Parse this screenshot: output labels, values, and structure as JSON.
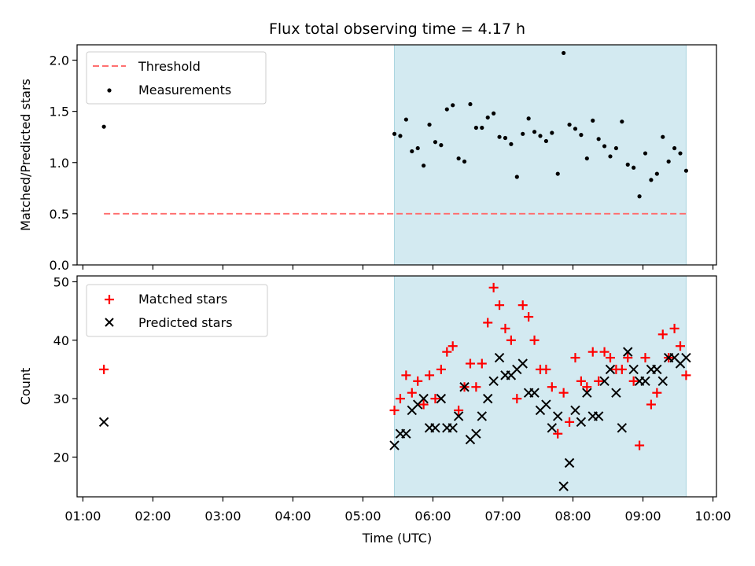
{
  "chart_data": {
    "title": "Flux total observing time = 4.17 h",
    "xlabel": "Time (UTC)",
    "x_type": "time",
    "xlim": [
      "00:55",
      "10:03"
    ],
    "x_ticks": [
      "01:00",
      "02:00",
      "03:00",
      "04:00",
      "05:00",
      "06:00",
      "07:00",
      "08:00",
      "09:00",
      "10:00"
    ],
    "shaded_region": {
      "x": [
        "05:27",
        "09:37"
      ],
      "color": "#d3eaf1"
    },
    "panels": [
      {
        "type": "scatter",
        "ylabel": "Matched/Predicted stars",
        "ylim": [
          0.0,
          2.15
        ],
        "y_ticks": [
          "0.0",
          "0.5",
          "1.0",
          "1.5",
          "2.0"
        ],
        "legend": "top-left",
        "series": [
          {
            "name": "Threshold",
            "kind": "dashed-line",
            "color": "#ff7070",
            "points": [
              [
                "01:18",
                0.5
              ],
              [
                "09:37",
                0.5
              ]
            ]
          },
          {
            "name": "Measurements",
            "kind": "dot",
            "color": "#000000",
            "points": [
              [
                "01:18",
                1.35
              ],
              [
                "05:27",
                1.28
              ],
              [
                "05:32",
                1.26
              ],
              [
                "05:37",
                1.42
              ],
              [
                "05:42",
                1.11
              ],
              [
                "05:47",
                1.14
              ],
              [
                "05:52",
                0.97
              ],
              [
                "05:57",
                1.37
              ],
              [
                "06:02",
                1.2
              ],
              [
                "06:07",
                1.17
              ],
              [
                "06:12",
                1.52
              ],
              [
                "06:17",
                1.56
              ],
              [
                "06:22",
                1.04
              ],
              [
                "06:27",
                1.01
              ],
              [
                "06:32",
                1.57
              ],
              [
                "06:37",
                1.34
              ],
              [
                "06:42",
                1.34
              ],
              [
                "06:47",
                1.44
              ],
              [
                "06:52",
                1.48
              ],
              [
                "06:57",
                1.25
              ],
              [
                "07:02",
                1.24
              ],
              [
                "07:07",
                1.18
              ],
              [
                "07:12",
                0.86
              ],
              [
                "07:17",
                1.28
              ],
              [
                "07:22",
                1.43
              ],
              [
                "07:27",
                1.3
              ],
              [
                "07:32",
                1.26
              ],
              [
                "07:37",
                1.21
              ],
              [
                "07:42",
                1.29
              ],
              [
                "07:47",
                0.89
              ],
              [
                "07:52",
                2.07
              ],
              [
                "07:57",
                1.37
              ],
              [
                "08:02",
                1.33
              ],
              [
                "08:07",
                1.27
              ],
              [
                "08:12",
                1.04
              ],
              [
                "08:17",
                1.41
              ],
              [
                "08:22",
                1.23
              ],
              [
                "08:27",
                1.16
              ],
              [
                "08:32",
                1.06
              ],
              [
                "08:37",
                1.14
              ],
              [
                "08:42",
                1.4
              ],
              [
                "08:47",
                0.98
              ],
              [
                "08:52",
                0.95
              ],
              [
                "08:57",
                0.67
              ],
              [
                "09:02",
                1.09
              ],
              [
                "09:07",
                0.83
              ],
              [
                "09:12",
                0.89
              ],
              [
                "09:17",
                1.25
              ],
              [
                "09:22",
                1.01
              ],
              [
                "09:27",
                1.14
              ],
              [
                "09:32",
                1.09
              ],
              [
                "09:37",
                0.92
              ]
            ]
          }
        ]
      },
      {
        "type": "scatter",
        "xlabel": "Time (UTC)",
        "ylabel": "Count",
        "ylim": [
          13.2,
          51.0
        ],
        "y_ticks": [
          "20",
          "30",
          "40",
          "50"
        ],
        "legend": "top-left",
        "series": [
          {
            "name": "Matched stars",
            "kind": "plus",
            "color": "#ff0000",
            "points": [
              [
                "01:18",
                35
              ],
              [
                "05:27",
                28
              ],
              [
                "05:32",
                30
              ],
              [
                "05:37",
                34
              ],
              [
                "05:42",
                31
              ],
              [
                "05:47",
                33
              ],
              [
                "05:52",
                29
              ],
              [
                "05:57",
                34
              ],
              [
                "06:02",
                30
              ],
              [
                "06:07",
                35
              ],
              [
                "06:12",
                38
              ],
              [
                "06:17",
                39
              ],
              [
                "06:22",
                28
              ],
              [
                "06:27",
                32
              ],
              [
                "06:32",
                36
              ],
              [
                "06:37",
                32
              ],
              [
                "06:42",
                36
              ],
              [
                "06:47",
                43
              ],
              [
                "06:52",
                49
              ],
              [
                "06:57",
                46
              ],
              [
                "07:02",
                42
              ],
              [
                "07:07",
                40
              ],
              [
                "07:12",
                30
              ],
              [
                "07:17",
                46
              ],
              [
                "07:22",
                44
              ],
              [
                "07:27",
                40
              ],
              [
                "07:32",
                35
              ],
              [
                "07:37",
                35
              ],
              [
                "07:42",
                32
              ],
              [
                "07:47",
                24
              ],
              [
                "07:52",
                31
              ],
              [
                "07:57",
                26
              ],
              [
                "08:02",
                37
              ],
              [
                "08:07",
                33
              ],
              [
                "08:12",
                32
              ],
              [
                "08:17",
                38
              ],
              [
                "08:22",
                33
              ],
              [
                "08:27",
                38
              ],
              [
                "08:32",
                37
              ],
              [
                "08:37",
                35
              ],
              [
                "08:42",
                35
              ],
              [
                "08:47",
                37
              ],
              [
                "08:52",
                33
              ],
              [
                "08:57",
                22
              ],
              [
                "09:02",
                37
              ],
              [
                "09:07",
                29
              ],
              [
                "09:12",
                31
              ],
              [
                "09:17",
                41
              ],
              [
                "09:22",
                37
              ],
              [
                "09:27",
                42
              ],
              [
                "09:32",
                39
              ],
              [
                "09:37",
                34
              ]
            ]
          },
          {
            "name": "Predicted stars",
            "kind": "x",
            "color": "#000000",
            "points": [
              [
                "01:18",
                26
              ],
              [
                "05:27",
                22
              ],
              [
                "05:32",
                24
              ],
              [
                "05:37",
                24
              ],
              [
                "05:42",
                28
              ],
              [
                "05:47",
                29
              ],
              [
                "05:52",
                30
              ],
              [
                "05:57",
                25
              ],
              [
                "06:02",
                25
              ],
              [
                "06:07",
                30
              ],
              [
                "06:12",
                25
              ],
              [
                "06:17",
                25
              ],
              [
                "06:22",
                27
              ],
              [
                "06:27",
                32
              ],
              [
                "06:32",
                23
              ],
              [
                "06:37",
                24
              ],
              [
                "06:42",
                27
              ],
              [
                "06:47",
                30
              ],
              [
                "06:52",
                33
              ],
              [
                "06:57",
                37
              ],
              [
                "07:02",
                34
              ],
              [
                "07:07",
                34
              ],
              [
                "07:12",
                35
              ],
              [
                "07:17",
                36
              ],
              [
                "07:22",
                31
              ],
              [
                "07:27",
                31
              ],
              [
                "07:32",
                28
              ],
              [
                "07:37",
                29
              ],
              [
                "07:42",
                25
              ],
              [
                "07:47",
                27
              ],
              [
                "07:52",
                15
              ],
              [
                "07:57",
                19
              ],
              [
                "08:02",
                28
              ],
              [
                "08:07",
                26
              ],
              [
                "08:12",
                31
              ],
              [
                "08:17",
                27
              ],
              [
                "08:22",
                27
              ],
              [
                "08:27",
                33
              ],
              [
                "08:32",
                35
              ],
              [
                "08:37",
                31
              ],
              [
                "08:42",
                25
              ],
              [
                "08:47",
                38
              ],
              [
                "08:52",
                35
              ],
              [
                "08:57",
                33
              ],
              [
                "09:02",
                33
              ],
              [
                "09:07",
                35
              ],
              [
                "09:12",
                35
              ],
              [
                "09:17",
                33
              ],
              [
                "09:22",
                37
              ],
              [
                "09:27",
                37
              ],
              [
                "09:32",
                36
              ],
              [
                "09:37",
                37
              ]
            ]
          }
        ]
      }
    ]
  }
}
